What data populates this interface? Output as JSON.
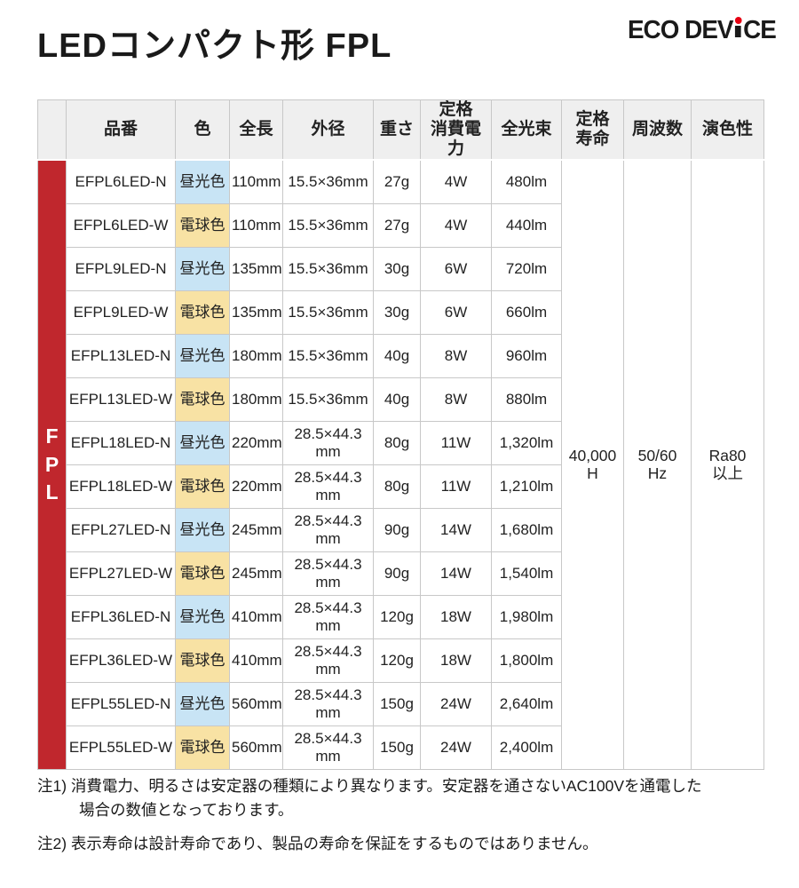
{
  "page": {
    "title": "LEDコンパクト形 FPL"
  },
  "logo": {
    "left": "ECO DEV",
    "right": "CE",
    "dot_color": "#e60012"
  },
  "colors": {
    "accent_red": "#c0272d",
    "daylight_blue": "#c8e4f5",
    "warm_yellow": "#f8e2a4",
    "header_gray": "#efefef",
    "border_gray": "#c8c8c8"
  },
  "table": {
    "row_group_label": "F\nP\nL",
    "columns": [
      "品番",
      "色",
      "全長",
      "外径",
      "重さ",
      "定格\n消費電力",
      "全光束",
      "定格\n寿命",
      "周波数",
      "演色性"
    ],
    "rows": [
      {
        "model": "EFPL6LED-N",
        "color": "昼光色",
        "color_type": "daylight",
        "length": "110mm",
        "diameter": "15.5×36mm",
        "weight": "27g",
        "power": "4W",
        "flux": "480lm"
      },
      {
        "model": "EFPL6LED-W",
        "color": "電球色",
        "color_type": "warm",
        "length": "110mm",
        "diameter": "15.5×36mm",
        "weight": "27g",
        "power": "4W",
        "flux": "440lm"
      },
      {
        "model": "EFPL9LED-N",
        "color": "昼光色",
        "color_type": "daylight",
        "length": "135mm",
        "diameter": "15.5×36mm",
        "weight": "30g",
        "power": "6W",
        "flux": "720lm"
      },
      {
        "model": "EFPL9LED-W",
        "color": "電球色",
        "color_type": "warm",
        "length": "135mm",
        "diameter": "15.5×36mm",
        "weight": "30g",
        "power": "6W",
        "flux": "660lm"
      },
      {
        "model": "EFPL13LED-N",
        "color": "昼光色",
        "color_type": "daylight",
        "length": "180mm",
        "diameter": "15.5×36mm",
        "weight": "40g",
        "power": "8W",
        "flux": "960lm"
      },
      {
        "model": "EFPL13LED-W",
        "color": "電球色",
        "color_type": "warm",
        "length": "180mm",
        "diameter": "15.5×36mm",
        "weight": "40g",
        "power": "8W",
        "flux": "880lm"
      },
      {
        "model": "EFPL18LED-N",
        "color": "昼光色",
        "color_type": "daylight",
        "length": "220mm",
        "diameter": "28.5×44.3\nmm",
        "weight": "80g",
        "power": "11W",
        "flux": "1,320lm"
      },
      {
        "model": "EFPL18LED-W",
        "color": "電球色",
        "color_type": "warm",
        "length": "220mm",
        "diameter": "28.5×44.3\nmm",
        "weight": "80g",
        "power": "11W",
        "flux": "1,210lm"
      },
      {
        "model": "EFPL27LED-N",
        "color": "昼光色",
        "color_type": "daylight",
        "length": "245mm",
        "diameter": "28.5×44.3\nmm",
        "weight": "90g",
        "power": "14W",
        "flux": "1,680lm"
      },
      {
        "model": "EFPL27LED-W",
        "color": "電球色",
        "color_type": "warm",
        "length": "245mm",
        "diameter": "28.5×44.3\nmm",
        "weight": "90g",
        "power": "14W",
        "flux": "1,540lm"
      },
      {
        "model": "EFPL36LED-N",
        "color": "昼光色",
        "color_type": "daylight",
        "length": "410mm",
        "diameter": "28.5×44.3\nmm",
        "weight": "120g",
        "power": "18W",
        "flux": "1,980lm"
      },
      {
        "model": "EFPL36LED-W",
        "color": "電球色",
        "color_type": "warm",
        "length": "410mm",
        "diameter": "28.5×44.3\nmm",
        "weight": "120g",
        "power": "18W",
        "flux": "1,800lm"
      },
      {
        "model": "EFPL55LED-N",
        "color": "昼光色",
        "color_type": "daylight",
        "length": "560mm",
        "diameter": "28.5×44.3\nmm",
        "weight": "150g",
        "power": "24W",
        "flux": "2,640lm"
      },
      {
        "model": "EFPL55LED-W",
        "color": "電球色",
        "color_type": "warm",
        "length": "560mm",
        "diameter": "28.5×44.3\nmm",
        "weight": "150g",
        "power": "24W",
        "flux": "2,400lm"
      }
    ],
    "shared": {
      "life": "40,000\nH",
      "frequency": "50/60\nHz",
      "cri": "Ra80\n以上"
    }
  },
  "notes": [
    {
      "text": "注1) 消費電力、明るさは安定器の種類により異なります。安定器を通さないAC100Vを通電した\n場合の数値となっております。"
    },
    {
      "text": "注2) 表示寿命は設計寿命であり、製品の寿命を保証をするものではありません。"
    }
  ]
}
